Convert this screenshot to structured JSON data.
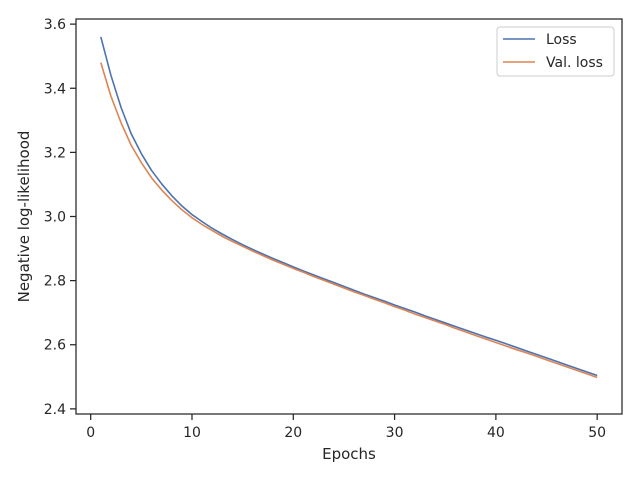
{
  "chart_data": {
    "type": "line",
    "title": "",
    "xlabel": "Epochs",
    "ylabel": "Negative log-likelihood",
    "xlim": [
      -1.45,
      52.45
    ],
    "ylim": [
      2.384,
      3.616
    ],
    "xticks": [
      0,
      10,
      20,
      30,
      40,
      50
    ],
    "xtick_labels": [
      "0",
      "10",
      "20",
      "30",
      "40",
      "50"
    ],
    "yticks": [
      2.4,
      2.6,
      2.8,
      3.0,
      3.2,
      3.4,
      3.6
    ],
    "ytick_labels": [
      "2.4",
      "2.6",
      "2.8",
      "3.0",
      "3.2",
      "3.4",
      "3.6"
    ],
    "grid": false,
    "legend_position": "upper-right",
    "x": [
      1,
      2,
      3,
      4,
      5,
      6,
      7,
      8,
      9,
      10,
      11,
      12,
      13,
      14,
      15,
      16,
      17,
      18,
      19,
      20,
      21,
      22,
      23,
      24,
      25,
      26,
      27,
      28,
      29,
      30,
      31,
      32,
      33,
      34,
      35,
      36,
      37,
      38,
      39,
      40,
      41,
      42,
      43,
      44,
      45,
      46,
      47,
      48,
      49,
      50
    ],
    "series": [
      {
        "name": "Loss",
        "color": "#4c72b0",
        "values": [
          3.56,
          3.44,
          3.34,
          3.258,
          3.196,
          3.144,
          3.102,
          3.065,
          3.033,
          3.006,
          2.984,
          2.963,
          2.945,
          2.928,
          2.912,
          2.897,
          2.883,
          2.869,
          2.856,
          2.843,
          2.83,
          2.818,
          2.806,
          2.794,
          2.782,
          2.77,
          2.758,
          2.747,
          2.736,
          2.724,
          2.713,
          2.702,
          2.69,
          2.679,
          2.668,
          2.657,
          2.646,
          2.635,
          2.624,
          2.614,
          2.603,
          2.592,
          2.581,
          2.57,
          2.559,
          2.548,
          2.537,
          2.526,
          2.515,
          2.504
        ]
      },
      {
        "name": "Val. loss",
        "color": "#dd8452",
        "values": [
          3.48,
          3.375,
          3.292,
          3.222,
          3.168,
          3.121,
          3.083,
          3.05,
          3.021,
          2.996,
          2.975,
          2.956,
          2.938,
          2.922,
          2.907,
          2.892,
          2.878,
          2.864,
          2.851,
          2.838,
          2.826,
          2.813,
          2.801,
          2.789,
          2.777,
          2.765,
          2.754,
          2.742,
          2.731,
          2.719,
          2.708,
          2.696,
          2.685,
          2.674,
          2.663,
          2.651,
          2.64,
          2.629,
          2.618,
          2.607,
          2.596,
          2.585,
          2.575,
          2.564,
          2.553,
          2.542,
          2.531,
          2.52,
          2.509,
          2.498
        ]
      }
    ]
  }
}
